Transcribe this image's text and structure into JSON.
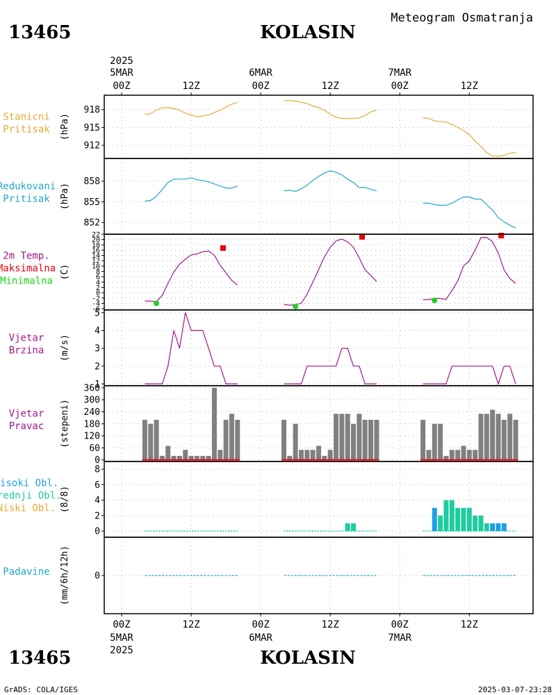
{
  "header": {
    "station_id": "13465",
    "station_name": "KOLASIN",
    "product_title": "Meteogram Osmatranja"
  },
  "footer": {
    "station_id": "13465",
    "station_name": "KOLASIN",
    "credit": "GrADS: COLA/IGES",
    "timestamp": "2025-03-07-23:28"
  },
  "time_axis": {
    "year": "2025",
    "days": [
      "5MAR",
      "6MAR",
      "7MAR"
    ],
    "tick_labels": [
      "00Z",
      "12Z",
      "00Z",
      "12Z",
      "00Z",
      "12Z"
    ],
    "tick_hours": [
      0,
      12,
      24,
      36,
      48,
      60
    ],
    "range_hours": [
      -3,
      71
    ]
  },
  "colors": {
    "pressure_station": "#e6a935",
    "pressure_reduced": "#1fa8cc",
    "temperature": "#a0148c",
    "tmax": "#e8000b",
    "tmin": "#1ed11e",
    "wind": "#a0148c",
    "direction_bars": "#808080",
    "direction_baseline": "#e8000b",
    "cloud_high": "#1e9fe6",
    "cloud_mid": "#1ecca0",
    "cloud_low": "#e6a935",
    "precip": "#1fa8cc",
    "frame": "#000000",
    "grid": "#b0b0b0"
  },
  "chart_data": [
    {
      "type": "line",
      "key": "station_pressure",
      "label_lines": [
        "Stanicni",
        "Pritisak"
      ],
      "ylabel": "(hPa)",
      "ylim": [
        909.8,
        920.4
      ],
      "yticks": [
        912,
        915,
        918
      ],
      "series": [
        {
          "x": [
            4,
            5,
            6,
            7,
            8,
            9,
            10,
            11,
            12,
            13,
            14,
            15,
            16,
            17,
            18,
            19,
            20
          ],
          "y": [
            917.2,
            917.3,
            917.9,
            918.3,
            918.3,
            918.2,
            917.9,
            917.4,
            917.1,
            916.8,
            916.9,
            917.1,
            917.5,
            917.9,
            918.4,
            918.9,
            919.2
          ]
        },
        {
          "x": [
            28,
            29,
            30,
            31,
            32,
            33,
            34,
            35,
            36,
            37,
            38,
            39,
            40,
            41,
            42,
            43,
            44
          ],
          "y": [
            919.5,
            919.5,
            919.4,
            919.2,
            919.0,
            918.6,
            918.3,
            917.9,
            917.2,
            916.7,
            916.5,
            916.5,
            916.5,
            916.6,
            917.0,
            917.6,
            917.9
          ]
        },
        {
          "x": [
            52,
            53,
            54,
            55,
            56,
            57,
            58,
            59,
            60,
            61,
            62,
            63,
            64,
            65,
            66,
            67,
            68
          ],
          "y": [
            916.6,
            916.5,
            916.1,
            916.0,
            915.9,
            915.5,
            915.0,
            914.5,
            913.8,
            912.7,
            911.8,
            910.8,
            910.2,
            910.2,
            910.3,
            910.7,
            910.8
          ]
        }
      ]
    },
    {
      "type": "line",
      "key": "reduced_pressure",
      "label_lines": [
        "Redukovani",
        "Pritisak"
      ],
      "ylabel": "(hPa)",
      "ylim": [
        850.3,
        861.3
      ],
      "yticks": [
        852,
        855,
        858
      ],
      "series": [
        {
          "x": [
            4,
            5,
            6,
            7,
            8,
            9,
            10,
            11,
            12,
            13,
            14,
            15,
            16,
            17,
            18,
            19,
            20
          ],
          "y": [
            855.1,
            855.2,
            855.8,
            856.8,
            857.8,
            858.3,
            858.3,
            858.3,
            858.5,
            858.2,
            858.1,
            857.9,
            857.6,
            857.3,
            857.0,
            857.0,
            857.3
          ]
        },
        {
          "x": [
            28,
            29,
            30,
            31,
            32,
            33,
            34,
            35,
            36,
            37,
            38,
            39,
            40,
            41,
            42,
            43,
            44
          ],
          "y": [
            856.6,
            856.7,
            856.5,
            856.9,
            857.4,
            858.1,
            858.7,
            859.2,
            859.5,
            859.3,
            858.9,
            858.3,
            857.8,
            857.1,
            857.1,
            856.8,
            856.6
          ]
        },
        {
          "x": [
            52,
            53,
            54,
            55,
            56,
            57,
            58,
            59,
            60,
            61,
            62,
            63,
            64,
            65,
            66,
            67,
            68
          ],
          "y": [
            854.8,
            854.8,
            854.6,
            854.5,
            854.5,
            854.8,
            855.3,
            855.7,
            855.7,
            855.4,
            855.4,
            854.6,
            853.8,
            852.7,
            852.1,
            851.6,
            851.2
          ]
        }
      ]
    },
    {
      "type": "line",
      "key": "temperature_2m",
      "label_lines": [
        "2m Temp.",
        "Maksimalna",
        "Minimalna"
      ],
      "label_colors": [
        "#e8000b",
        "#e8000b",
        "#1ed11e"
      ],
      "ylabel": "(C)",
      "ylim": [
        -6.5,
        22
      ],
      "yticks": [
        -6,
        -4,
        -2,
        0,
        2,
        4,
        6,
        8,
        10,
        12,
        14,
        16,
        18,
        20,
        22
      ],
      "series": [
        {
          "x": [
            4,
            5,
            6,
            7,
            8,
            9,
            10,
            11,
            12,
            13,
            14,
            15,
            16,
            17,
            18,
            19,
            20
          ],
          "y": [
            -3.1,
            -3.2,
            -3.4,
            -1.0,
            3.5,
            7.8,
            10.7,
            12.6,
            14.2,
            14.6,
            15.4,
            15.7,
            14.1,
            10.3,
            7.5,
            4.6,
            2.9
          ]
        },
        {
          "x": [
            28,
            29,
            30,
            31,
            32,
            33,
            34,
            35,
            36,
            37,
            38,
            39,
            40,
            41,
            42,
            43,
            44
          ],
          "y": [
            -4.4,
            -4.7,
            -4.5,
            -4.0,
            -0.6,
            4.0,
            8.7,
            13.5,
            17.1,
            19.5,
            20.2,
            19.1,
            17.1,
            13.1,
            8.6,
            6.5,
            4.2
          ]
        },
        {
          "x": [
            52,
            53,
            54,
            55,
            56,
            57,
            58,
            59,
            60,
            61,
            62,
            63,
            64,
            65,
            66,
            67,
            68
          ],
          "y": [
            -2.6,
            -2.6,
            -2.1,
            -2.2,
            -2.5,
            0.8,
            4.4,
            10.0,
            12.0,
            16.0,
            20.7,
            20.8,
            19.2,
            14.9,
            8.6,
            5.3,
            3.5
          ]
        }
      ],
      "tmax_points": [
        {
          "x": 17.5,
          "y": 16.8
        },
        {
          "x": 41.5,
          "y": 21.0
        },
        {
          "x": 65.5,
          "y": 21.5
        }
      ],
      "tmin_points": [
        {
          "x": 6,
          "y": -4.0
        },
        {
          "x": 30,
          "y": -5.2
        },
        {
          "x": 54,
          "y": -2.9
        }
      ]
    },
    {
      "type": "line",
      "key": "wind_speed",
      "label_lines": [
        "Vjetar",
        "Brzina"
      ],
      "ylabel": "(m/s)",
      "ylim": [
        0.9,
        5.15
      ],
      "yticks": [
        1,
        2,
        3,
        4,
        5
      ],
      "series": [
        {
          "x": [
            4,
            5,
            6,
            7,
            8,
            9,
            10,
            11,
            12,
            13,
            14,
            15,
            16,
            17,
            18,
            19,
            20
          ],
          "y": [
            1,
            1,
            1,
            1,
            2,
            4,
            3,
            5,
            4,
            4,
            4,
            3,
            2,
            2,
            1,
            1,
            1
          ]
        },
        {
          "x": [
            28,
            29,
            30,
            31,
            32,
            33,
            34,
            35,
            36,
            37,
            38,
            39,
            40,
            41,
            42,
            43,
            44
          ],
          "y": [
            1,
            1,
            1,
            1,
            2,
            2,
            2,
            2,
            2,
            2,
            3,
            3,
            2,
            2,
            1,
            1,
            1
          ]
        },
        {
          "x": [
            52,
            53,
            54,
            55,
            56,
            57,
            58,
            59,
            60,
            61,
            62,
            63,
            64,
            65,
            66,
            67,
            68
          ],
          "y": [
            1,
            1,
            1,
            1,
            1,
            2,
            2,
            2,
            2,
            2,
            2,
            2,
            2,
            1,
            2,
            2,
            1
          ]
        }
      ]
    },
    {
      "type": "bar",
      "key": "wind_direction",
      "label_lines": [
        "Vjetar",
        "Pravac"
      ],
      "ylabel": "(stepeni)",
      "ylim": [
        -8,
        370
      ],
      "yticks": [
        0,
        60,
        120,
        180,
        240,
        300,
        360
      ],
      "x": [
        4,
        5,
        6,
        7,
        8,
        9,
        10,
        11,
        12,
        13,
        14,
        15,
        16,
        17,
        18,
        19,
        20,
        28,
        29,
        30,
        31,
        32,
        33,
        34,
        35,
        36,
        37,
        38,
        39,
        40,
        41,
        42,
        43,
        44,
        52,
        53,
        54,
        55,
        56,
        57,
        58,
        59,
        60,
        61,
        62,
        63,
        64,
        65,
        66,
        67,
        68
      ],
      "values": [
        200,
        180,
        200,
        20,
        70,
        20,
        20,
        50,
        20,
        20,
        20,
        20,
        360,
        50,
        200,
        230,
        200,
        200,
        20,
        180,
        50,
        50,
        50,
        70,
        20,
        50,
        230,
        230,
        230,
        180,
        230,
        200,
        200,
        200,
        200,
        50,
        180,
        180,
        20,
        50,
        50,
        70,
        50,
        50,
        230,
        230,
        250,
        230,
        200,
        230,
        200
      ]
    },
    {
      "type": "bar",
      "key": "cloud_cover",
      "label_lines": [
        "Visoki Obl.",
        "Srednji Obl.",
        "Niski Obl."
      ],
      "label_colors": [
        "#1e9fe6",
        "#1ecca0",
        "#e6a935"
      ],
      "ylabel": "(8/8)",
      "ylim": [
        -0.8,
        9
      ],
      "yticks": [
        0,
        2,
        4,
        6,
        8
      ],
      "x": [
        39,
        40,
        54,
        55,
        56,
        57,
        58,
        59,
        60,
        61,
        62,
        63,
        64,
        65,
        66
      ],
      "series": [
        {
          "name": "Visoki Obl.",
          "values": [
            0,
            0,
            3,
            0,
            0,
            0,
            0,
            0,
            0,
            0,
            0,
            0,
            1,
            1,
            1
          ]
        },
        {
          "name": "Srednji Obl.",
          "values": [
            1,
            1,
            0,
            2,
            4,
            4,
            3,
            3,
            3,
            2,
            2,
            1,
            0,
            0,
            0
          ]
        },
        {
          "name": "Niski Obl.",
          "values": [
            0,
            0,
            0,
            0,
            0,
            0,
            0,
            0,
            0,
            0,
            0,
            0,
            0,
            0,
            0
          ]
        }
      ]
    },
    {
      "type": "line",
      "key": "precipitation",
      "label_lines": [
        "Padavine"
      ],
      "ylabel": "(mm/6h/12h)",
      "ylim": [
        -5,
        5
      ],
      "yticks": [
        0
      ],
      "series": [
        {
          "x": [
            4,
            20
          ],
          "y": [
            0,
            0
          ]
        },
        {
          "x": [
            28,
            44
          ],
          "y": [
            0,
            0
          ]
        },
        {
          "x": [
            52,
            68
          ],
          "y": [
            0,
            0
          ]
        }
      ]
    }
  ]
}
